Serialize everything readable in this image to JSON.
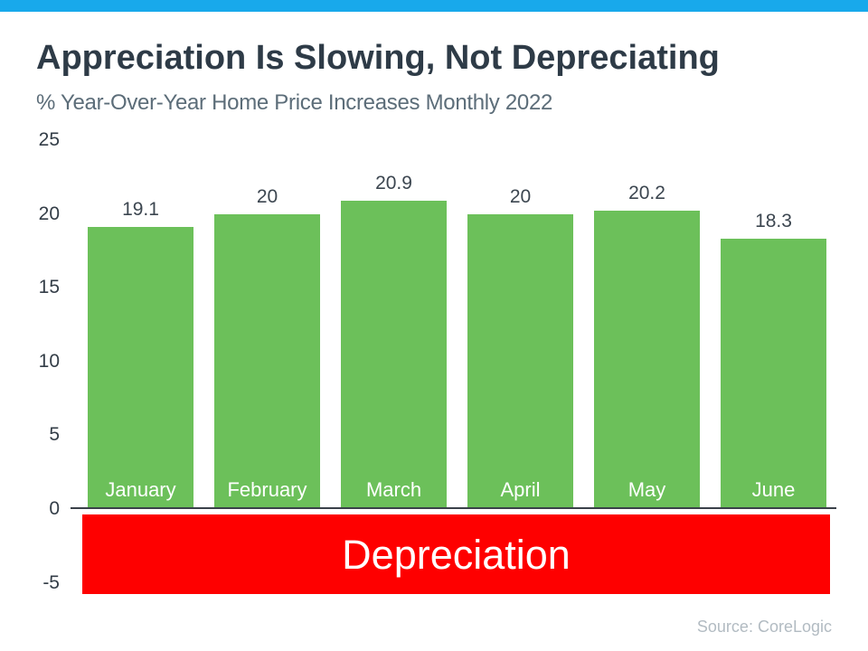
{
  "page": {
    "background": "#FFFFFF",
    "top_accent_color": "#18A9EB"
  },
  "header": {
    "title": "Appreciation Is Slowing, Not Depreciating",
    "subtitle": "% Year-Over-Year Home Price Increases Monthly 2022"
  },
  "chart_data": {
    "type": "bar",
    "categories": [
      "January",
      "February",
      "March",
      "April",
      "May",
      "June"
    ],
    "values": [
      19.1,
      20,
      20.9,
      20,
      20.2,
      18.3
    ],
    "value_labels": [
      "19.1",
      "20",
      "20.9",
      "20",
      "20.2",
      "18.3"
    ],
    "title": "Appreciation Is Slowing, Not Depreciating",
    "subtitle": "% Year-Over-Year Home Price Increases Monthly 2022",
    "xlabel": "",
    "ylabel": "",
    "ylim": [
      -5,
      25
    ],
    "yticks": [
      25,
      20,
      15,
      10,
      5,
      0,
      -5
    ],
    "grid": false,
    "legend": false,
    "bar_color": "#6CC05A",
    "category_labels_inside_bars": true,
    "annotations": [
      {
        "text": "Depreciation",
        "type": "band",
        "y_range": [
          -5,
          0
        ],
        "fill": "#FE0000",
        "text_color": "#FFFFFF"
      }
    ]
  },
  "footer": {
    "source": "Source: CoreLogic"
  },
  "colors": {
    "title": "#2E3B47",
    "subtitle": "#5C6D79",
    "tick_label": "#333D47",
    "value_label": "#3C4650",
    "month_label": "#FFFFFF",
    "axis_line": "#3A4149",
    "source": "#B2BBC2"
  }
}
